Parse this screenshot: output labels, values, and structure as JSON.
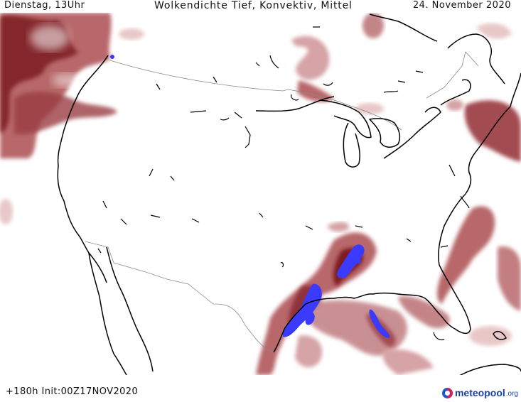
{
  "header": {
    "left": "Dienstag, 13Uhr",
    "title": "Wolkendichte   Tief, Konvektiv, Mittel",
    "date": "24. November 2020"
  },
  "footer": {
    "run_info": "+180h  Init:00Z17NOV2020",
    "logo_text": "meteopool",
    "logo_tld": ".org"
  },
  "legend_colors": {
    "low_density": "#e8c7c7",
    "medium_density": "#b8676b",
    "high_density": "#7c1f24",
    "convective_core": "#3b3bff",
    "coastline": "#000000",
    "border": "#8a8a8a"
  }
}
